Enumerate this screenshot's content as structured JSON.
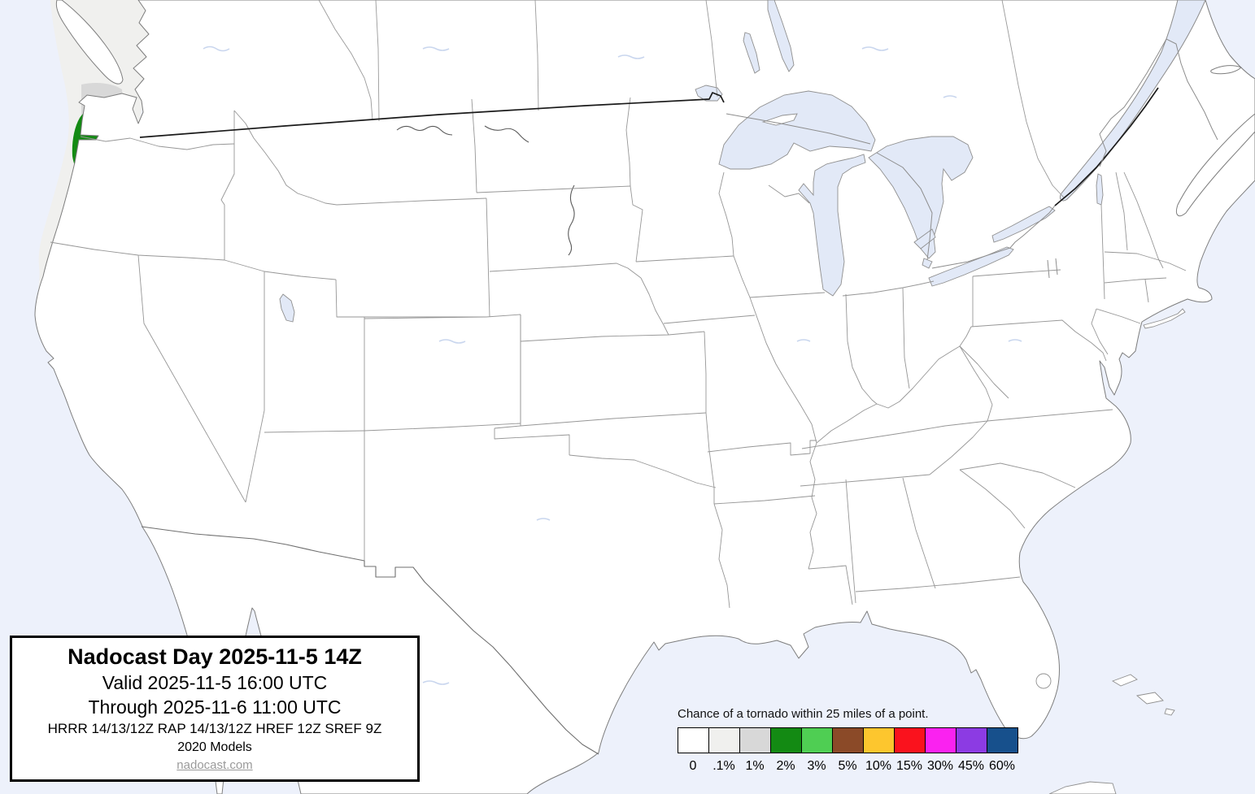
{
  "title_box": {
    "title": "Nadocast Day 2025-11-5 14Z",
    "valid": "Valid 2025-11-5 16:00 UTC",
    "through": "Through 2025-11-6 11:00 UTC",
    "models": "HRRR 14/13/12Z RAP 14/13/12Z HREF 12Z SREF 9Z",
    "models_year": "2020 Models",
    "site_link": "nadocast.com"
  },
  "legend": {
    "caption": "Chance of a tornado within 25 miles of a point.",
    "entries": [
      {
        "label": "0",
        "color": "#FFFFFF"
      },
      {
        "label": ".1%",
        "color": "#F0F0EE"
      },
      {
        "label": "1%",
        "color": "#D8D8D8"
      },
      {
        "label": "2%",
        "color": "#138A13"
      },
      {
        "label": "3%",
        "color": "#4FCE53"
      },
      {
        "label": "5%",
        "color": "#8B4A28"
      },
      {
        "label": "10%",
        "color": "#FDC62E"
      },
      {
        "label": "15%",
        "color": "#FA121D"
      },
      {
        "label": "30%",
        "color": "#FA22F0"
      },
      {
        "label": "45%",
        "color": "#8C3BE3"
      },
      {
        "label": "60%",
        "color": "#17508C"
      }
    ]
  },
  "map": {
    "ocean_color": "#EDF1FB",
    "land_color": "#FFFFFF",
    "lake_color": "#E2E9F7",
    "p01_color": "#F0F0EE",
    "p1_color": "#D8D8D8",
    "p2_color": "#138A13"
  }
}
